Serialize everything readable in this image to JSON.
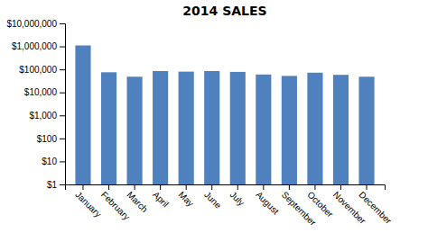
{
  "chart_data": {
    "type": "bar",
    "title": "2014 SALES",
    "categories": [
      "January",
      "February",
      "March",
      "April",
      "May",
      "June",
      "July",
      "August",
      "September",
      "October",
      "November",
      "December"
    ],
    "values": [
      1100000,
      75000,
      48000,
      85000,
      80000,
      85000,
      78000,
      60000,
      52000,
      72000,
      58000,
      48000
    ],
    "color": "#4E81BD",
    "log": "y",
    "ylim": [
      1,
      10000000
    ],
    "yticks": [
      {
        "value": 1,
        "label": "$1"
      },
      {
        "value": 10,
        "label": "$10"
      },
      {
        "value": 100,
        "label": "$100"
      },
      {
        "value": 1000,
        "label": "$1,000"
      },
      {
        "value": 10000,
        "label": "$10,000"
      },
      {
        "value": 100000,
        "label": "$100,000"
      },
      {
        "value": 1000000,
        "label": "$1,000,000"
      },
      {
        "value": 10000000,
        "label": "$10,000,000"
      }
    ],
    "grid": false
  }
}
